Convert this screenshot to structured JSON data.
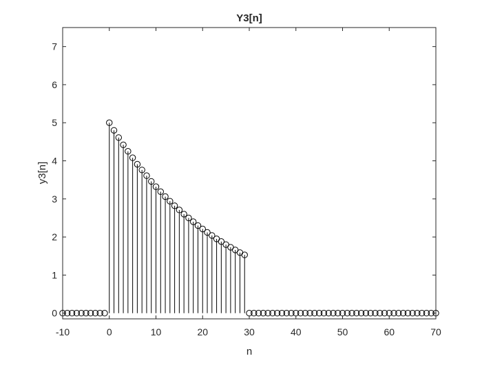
{
  "chart_data": {
    "type": "stem",
    "title": "Y3[n]",
    "xlabel": "n",
    "ylabel": "y3[n]",
    "xlim": [
      -10,
      70
    ],
    "ylim": [
      -0.15,
      7.5
    ],
    "xticks": [
      -10,
      0,
      10,
      20,
      30,
      40,
      50,
      60,
      70
    ],
    "yticks": [
      0,
      1,
      2,
      3,
      4,
      5,
      6,
      7
    ],
    "grid": false,
    "series": [
      {
        "x": [
          -10,
          -9,
          -8,
          -7,
          -6,
          -5,
          -4,
          -3,
          -2,
          -1,
          0,
          1,
          2,
          3,
          4,
          5,
          6,
          7,
          8,
          9,
          10,
          11,
          12,
          13,
          14,
          15,
          16,
          17,
          18,
          19,
          20,
          21,
          22,
          23,
          24,
          25,
          26,
          27,
          28,
          29,
          30,
          31,
          32,
          33,
          34,
          35,
          36,
          37,
          38,
          39,
          40,
          41,
          42,
          43,
          44,
          45,
          46,
          47,
          48,
          49,
          50,
          51,
          52,
          53,
          54,
          55,
          56,
          57,
          58,
          59,
          60,
          61,
          62,
          63,
          64,
          65,
          66,
          67,
          68,
          69,
          70
        ],
        "values": [
          0,
          0,
          0,
          0,
          0,
          0,
          0,
          0,
          0,
          0,
          5.0,
          4.8,
          4.61,
          4.42,
          4.25,
          4.08,
          3.91,
          3.76,
          3.61,
          3.46,
          3.32,
          3.19,
          3.06,
          2.94,
          2.82,
          2.71,
          2.6,
          2.5,
          2.4,
          2.3,
          2.21,
          2.12,
          2.04,
          1.95,
          1.88,
          1.8,
          1.73,
          1.66,
          1.59,
          1.53,
          0,
          0,
          0,
          0,
          0,
          0,
          0,
          0,
          0,
          0,
          0,
          0,
          0,
          0,
          0,
          0,
          0,
          0,
          0,
          0,
          0,
          0,
          0,
          0,
          0,
          0,
          0,
          0,
          0,
          0,
          0,
          0,
          0,
          0,
          0,
          0,
          0,
          0,
          0,
          0,
          0
        ]
      }
    ]
  }
}
